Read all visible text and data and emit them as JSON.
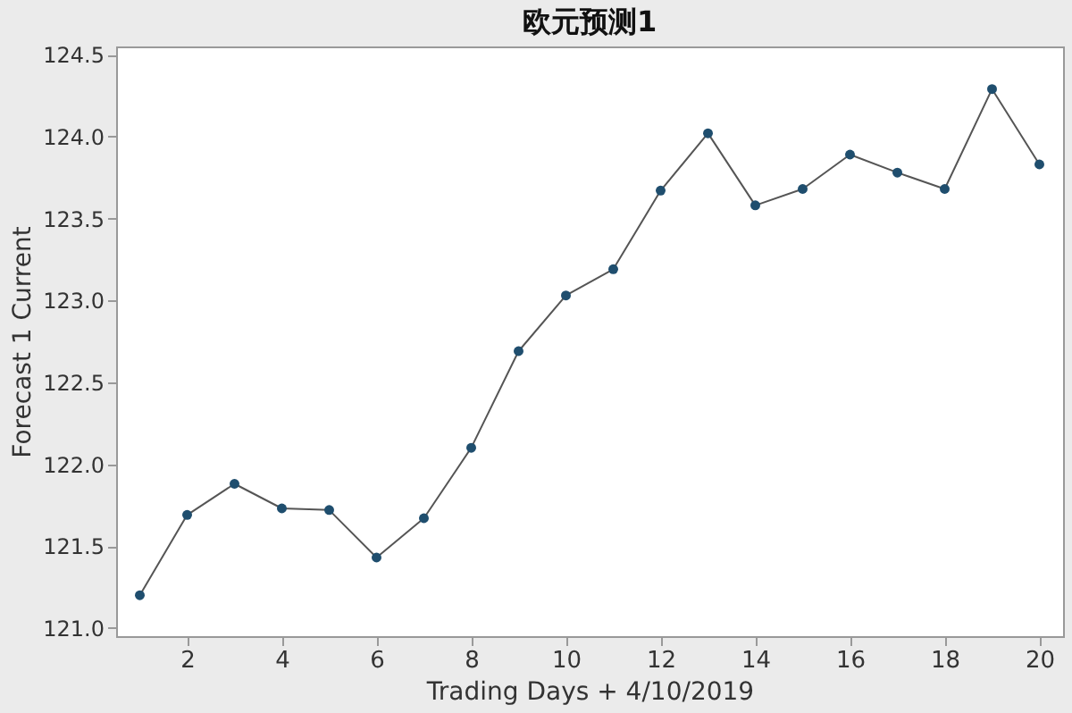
{
  "chart_data": {
    "type": "line",
    "title": "欧元预测1",
    "xlabel": "Trading Days + 4/10/2019",
    "ylabel": "Forecast 1 Current",
    "x": [
      1,
      2,
      3,
      4,
      5,
      6,
      7,
      8,
      9,
      10,
      11,
      12,
      13,
      14,
      15,
      16,
      17,
      18,
      19,
      20
    ],
    "series": [
      {
        "color": "#1f4e6e",
        "values": [
          121.2,
          121.69,
          121.88,
          121.73,
          121.72,
          121.43,
          121.67,
          122.1,
          122.69,
          123.03,
          123.19,
          123.67,
          124.02,
          123.58,
          123.68,
          123.89,
          123.78,
          123.68,
          124.29,
          123.83
        ]
      }
    ],
    "xlim": [
      0.5,
      20.5
    ],
    "xticks": [
      2,
      4,
      6,
      8,
      10,
      12,
      14,
      16,
      18,
      20
    ],
    "ylim": [
      120.95,
      124.55
    ],
    "yticks": [
      {
        "value": 121,
        "label": "121.0"
      },
      121.5,
      {
        "value": 122,
        "label": "122.0"
      },
      122.5,
      {
        "value": 123,
        "label": "123.0"
      },
      123.5,
      {
        "value": 124,
        "label": "124.0"
      },
      124.5
    ],
    "marker": "circle",
    "line_style": "solid",
    "grid": false
  }
}
